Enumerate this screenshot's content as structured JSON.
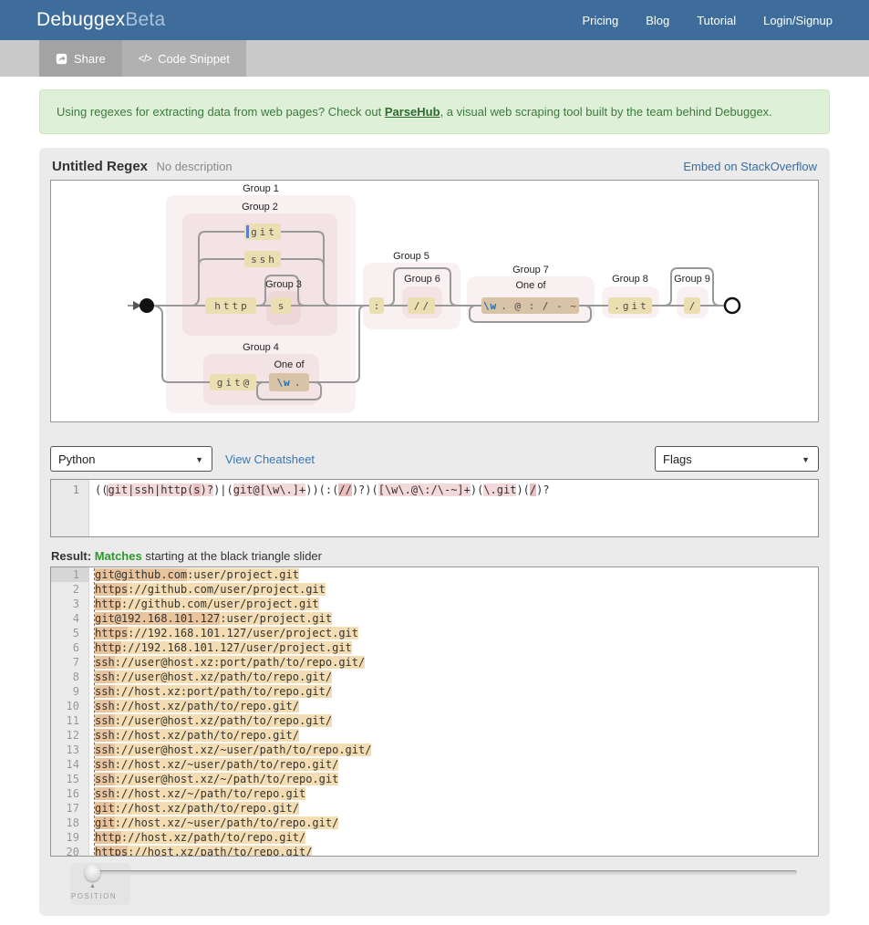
{
  "navbar": {
    "brand": "Debuggex",
    "brand_suffix": "Beta",
    "links": [
      "Pricing",
      "Blog",
      "Tutorial",
      "Login/Signup"
    ]
  },
  "toolbar": {
    "share": "Share",
    "code_snippet": "Code Snippet",
    "code_glyph": "</>"
  },
  "banner": {
    "text_before": "Using regexes for extracting data from web pages? Check out ",
    "link": "ParseHub",
    "text_after": ", a visual web scraping tool built by the team behind Debuggex."
  },
  "regex_panel": {
    "title": "Untitled Regex",
    "subtitle": "No description",
    "embed_link": "Embed on StackOverflow"
  },
  "diagram": {
    "groups": {
      "g1": "Group 1",
      "g2": "Group 2",
      "g3": "Group 3",
      "g4": "Group 4",
      "g5": "Group 5",
      "g6": "Group 6",
      "g7": "Group 7",
      "g8": "Group 8",
      "g9": "Group 9"
    },
    "one_of": "One of",
    "literals": {
      "git": "git",
      "ssh": "ssh",
      "http": "http",
      "s": "s",
      "git_at": "git@",
      "colon": ":",
      "double_slash": "//",
      "dot_git": ".git",
      "slash": "/"
    },
    "charsets": {
      "g4_blue": "\\w",
      "g4_rest": ".",
      "g7_blue": "\\w",
      "g7_rest": ". @ : / - ~"
    }
  },
  "controls": {
    "language": "Python",
    "cheatsheet": "View Cheatsheet",
    "flags": "Flags"
  },
  "editor": {
    "line_number": "1",
    "segments": [
      {
        "t": "(("
      },
      {
        "cursor": true
      },
      {
        "t": "git|ssh|http(",
        "c": "s1"
      },
      {
        "t": "s",
        "c": "s2"
      },
      {
        "t": ")?",
        "c": "s1"
      },
      {
        "t": ")|("
      },
      {
        "t": "git@[\\w\\.]+",
        "c": "s1"
      },
      {
        "t": "))(:("
      },
      {
        "t": "//",
        "c": "s2"
      },
      {
        "t": ")?)("
      },
      {
        "t": "[\\w\\.@\\:/\\-~]+",
        "c": "s1"
      },
      {
        "t": ")("
      },
      {
        "t": "\\.git",
        "c": "s1"
      },
      {
        "t": ")("
      },
      {
        "t": "/",
        "c": "s2"
      },
      {
        "t": ")?"
      }
    ]
  },
  "result": {
    "label": "Result:",
    "status": "Matches",
    "description": " starting at the black triangle slider"
  },
  "tests": {
    "lines": [
      {
        "n": "1",
        "segs": [
          {
            "t": "git@github.com",
            "c": "g"
          },
          {
            "t": ":user/project.git",
            "c": "m"
          }
        ]
      },
      {
        "n": "2",
        "segs": [
          {
            "t": "https",
            "c": "g"
          },
          {
            "t": "://github.com/user/project.git",
            "c": "m"
          }
        ]
      },
      {
        "n": "3",
        "segs": [
          {
            "t": "http",
            "c": "g"
          },
          {
            "t": "://github.com/user/project.git",
            "c": "m"
          }
        ]
      },
      {
        "n": "4",
        "segs": [
          {
            "t": "git@192.168.101.127",
            "c": "g"
          },
          {
            "t": ":user/project.git",
            "c": "m"
          }
        ]
      },
      {
        "n": "5",
        "segs": [
          {
            "t": "https",
            "c": "g"
          },
          {
            "t": "://192.168.101.127/user/project.git",
            "c": "m"
          }
        ]
      },
      {
        "n": "6",
        "segs": [
          {
            "t": "http",
            "c": "g"
          },
          {
            "t": "://192.168.101.127/user/project.git",
            "c": "m"
          }
        ]
      },
      {
        "n": "7",
        "segs": [
          {
            "t": "ssh",
            "c": "g"
          },
          {
            "t": "://user@host.xz:port/path/to/repo.git/",
            "c": "m"
          }
        ]
      },
      {
        "n": "8",
        "segs": [
          {
            "t": "ssh",
            "c": "g"
          },
          {
            "t": "://user@host.xz/path/to/repo.git/",
            "c": "m"
          }
        ]
      },
      {
        "n": "9",
        "segs": [
          {
            "t": "ssh",
            "c": "g"
          },
          {
            "t": "://host.xz:port/path/to/repo.git/",
            "c": "m"
          }
        ]
      },
      {
        "n": "10",
        "segs": [
          {
            "t": "ssh",
            "c": "g"
          },
          {
            "t": "://host.xz/path/to/repo.git/",
            "c": "m"
          }
        ]
      },
      {
        "n": "11",
        "segs": [
          {
            "t": "ssh",
            "c": "g"
          },
          {
            "t": "://user@host.xz/path/to/repo.git/",
            "c": "m"
          }
        ]
      },
      {
        "n": "12",
        "segs": [
          {
            "t": "ssh",
            "c": "g"
          },
          {
            "t": "://host.xz/path/to/repo.git/",
            "c": "m"
          }
        ]
      },
      {
        "n": "13",
        "segs": [
          {
            "t": "ssh",
            "c": "g"
          },
          {
            "t": "://user@host.xz/~user/path/to/repo.git/",
            "c": "m"
          }
        ]
      },
      {
        "n": "14",
        "segs": [
          {
            "t": "ssh",
            "c": "g"
          },
          {
            "t": "://host.xz/~user/path/to/repo.git/",
            "c": "m"
          }
        ]
      },
      {
        "n": "15",
        "segs": [
          {
            "t": "ssh",
            "c": "g"
          },
          {
            "t": "://user@host.xz/~/path/to/repo.git",
            "c": "m"
          }
        ]
      },
      {
        "n": "16",
        "segs": [
          {
            "t": "ssh",
            "c": "g"
          },
          {
            "t": "://host.xz/~/path/to/repo.git",
            "c": "m"
          }
        ]
      },
      {
        "n": "17",
        "segs": [
          {
            "t": "git",
            "c": "g"
          },
          {
            "t": "://host.xz/path/to/repo.git/",
            "c": "m"
          }
        ]
      },
      {
        "n": "18",
        "segs": [
          {
            "t": "git",
            "c": "g"
          },
          {
            "t": "://host.xz/~user/path/to/repo.git/",
            "c": "m"
          }
        ]
      },
      {
        "n": "19",
        "segs": [
          {
            "t": "http",
            "c": "g"
          },
          {
            "t": "://host.xz/path/to/repo.git/",
            "c": "m"
          }
        ]
      },
      {
        "n": "20",
        "segs": [
          {
            "t": "https",
            "c": "g"
          },
          {
            "t": "://host.xz/path/to/repo.git/",
            "c": "m"
          }
        ]
      }
    ]
  },
  "position": {
    "label": "POSITION",
    "triangle": "▲"
  }
}
